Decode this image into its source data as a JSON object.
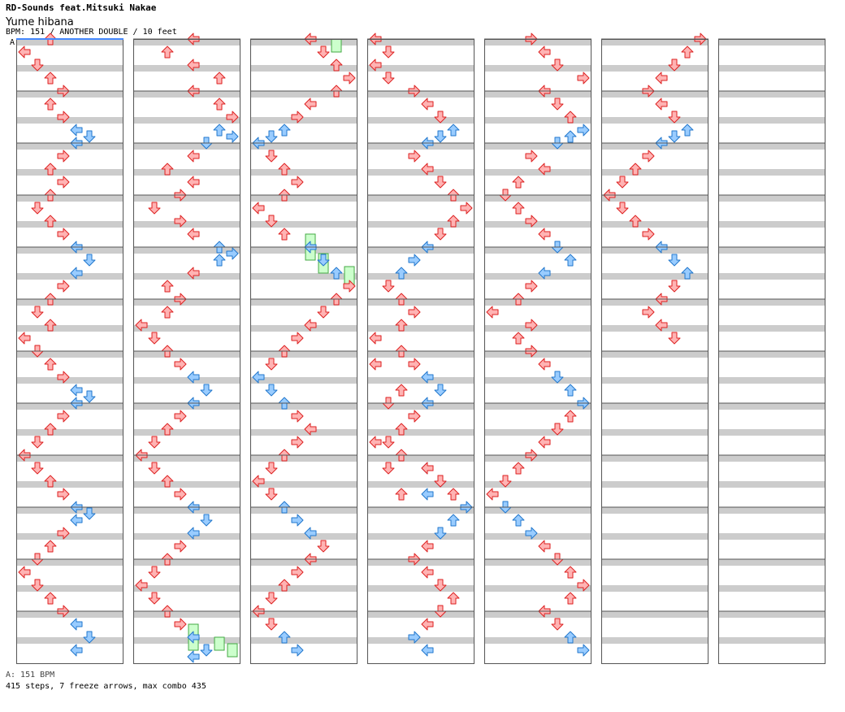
{
  "song": {
    "artist": "RD-Sounds feat.Mitsuki Nakae",
    "title": "Yume hibana",
    "meta_line": "BPM: 151 / ANOTHER DOUBLE / 10 feet",
    "section_marker": "A"
  },
  "footer": {
    "bpm_line": "A: 151 BPM",
    "stats_line": "415 steps, 7 freeze arrows, max combo 435"
  },
  "colors": {
    "red_fill": "#ffb3b3",
    "red_stroke": "#dd2222",
    "blue_fill": "#99ccff",
    "blue_stroke": "#2277cc",
    "freeze_fill": "#ccffcc",
    "freeze_stroke": "#44aa44",
    "band_gray": "#cccccc",
    "column_border": "#555555",
    "section_line": "#4488ff"
  },
  "chart_data": {
    "type": "step-chart",
    "style": "DOUBLE",
    "difficulty": "ANOTHER",
    "bpm": 151,
    "feet": 10,
    "steps": 415,
    "freeze_arrows": 7,
    "max_combo": 435,
    "columns": 7,
    "measures_per_column": 12,
    "lanes": [
      "P1-left",
      "P1-down",
      "P1-up",
      "P1-right",
      "P2-left",
      "P2-down",
      "P2-up",
      "P2-right"
    ],
    "notes_col1": [
      [
        0,
        42.25,
        4
      ],
      [
        1,
        43.0,
        4
      ],
      [
        2,
        42.75,
        4
      ],
      [
        3,
        43.25,
        4
      ],
      [
        0,
        43.75,
        4
      ],
      [
        1,
        44.25,
        4
      ],
      [
        2,
        44.75,
        4
      ],
      [
        4,
        44.25,
        8
      ],
      [
        5,
        44.5,
        8
      ],
      [
        4,
        44.75,
        8
      ]
    ],
    "notes_col2": [
      [
        2,
        0.0,
        4
      ],
      [
        0,
        0.25,
        4
      ],
      [
        1,
        0.5,
        4
      ],
      [
        2,
        0.75,
        4
      ],
      [
        3,
        1.0,
        4
      ],
      [
        2,
        1.25,
        4
      ],
      [
        3,
        1.5,
        4
      ],
      [
        4,
        1.75,
        8
      ],
      [
        5,
        1.875,
        8
      ],
      [
        4,
        2.0,
        8
      ],
      [
        3,
        2.25,
        4
      ],
      [
        2,
        2.5,
        4
      ],
      [
        3,
        2.75,
        4
      ],
      [
        2,
        3.0,
        4
      ],
      [
        1,
        3.25,
        4
      ],
      [
        2,
        3.5,
        4
      ],
      [
        3,
        3.75,
        4
      ],
      [
        4,
        4.0,
        8
      ],
      [
        5,
        4.25,
        8
      ],
      [
        4,
        4.5,
        8
      ],
      [
        3,
        4.75,
        4
      ],
      [
        2,
        5.0,
        4
      ],
      [
        1,
        5.25,
        4
      ],
      [
        2,
        5.5,
        4
      ],
      [
        0,
        5.75,
        4
      ],
      [
        1,
        6.0,
        4
      ],
      [
        2,
        6.25,
        4
      ],
      [
        3,
        6.5,
        4
      ],
      [
        4,
        6.75,
        8
      ],
      [
        5,
        6.875,
        8
      ],
      [
        4,
        7.0,
        8
      ],
      [
        3,
        7.25,
        4
      ],
      [
        2,
        7.5,
        4
      ],
      [
        1,
        7.75,
        4
      ],
      [
        0,
        8.0,
        4
      ],
      [
        1,
        8.25,
        4
      ],
      [
        2,
        8.5,
        4
      ],
      [
        3,
        8.75,
        4
      ],
      [
        4,
        9.0,
        8
      ],
      [
        5,
        9.125,
        8
      ],
      [
        4,
        9.25,
        8
      ],
      [
        3,
        9.5,
        4
      ],
      [
        2,
        9.75,
        4
      ],
      [
        1,
        10.0,
        4
      ],
      [
        0,
        10.25,
        4
      ],
      [
        1,
        10.5,
        4
      ],
      [
        2,
        10.75,
        4
      ],
      [
        3,
        11.0,
        4
      ],
      [
        4,
        11.25,
        8
      ],
      [
        5,
        11.5,
        8
      ],
      [
        4,
        11.75,
        8
      ]
    ],
    "notes_col3": [
      [
        4,
        12.0,
        4
      ],
      [
        2,
        12.25,
        4
      ],
      [
        4,
        12.5,
        4
      ],
      [
        6,
        12.75,
        4
      ],
      [
        4,
        13.0,
        4
      ],
      [
        6,
        13.25,
        4
      ],
      [
        7,
        13.5,
        4
      ],
      [
        6,
        13.75,
        8
      ],
      [
        7,
        13.875,
        8
      ],
      [
        5,
        14.0,
        8
      ],
      [
        4,
        14.25,
        4
      ],
      [
        2,
        14.5,
        4
      ],
      [
        4,
        14.75,
        4
      ],
      [
        3,
        15.0,
        4
      ],
      [
        1,
        15.25,
        4
      ],
      [
        3,
        15.5,
        4
      ],
      [
        4,
        15.75,
        4
      ],
      [
        6,
        16.0,
        8
      ],
      [
        7,
        16.125,
        8
      ],
      [
        6,
        16.25,
        8
      ],
      [
        4,
        16.5,
        4
      ],
      [
        2,
        16.75,
        4
      ],
      [
        3,
        17.0,
        4
      ],
      [
        2,
        17.25,
        4
      ],
      [
        0,
        17.5,
        4
      ],
      [
        1,
        17.75,
        4
      ],
      [
        2,
        18.0,
        4
      ],
      [
        3,
        18.25,
        4
      ],
      [
        4,
        18.5,
        8
      ],
      [
        5,
        18.75,
        8
      ],
      [
        4,
        19.0,
        8
      ],
      [
        3,
        19.25,
        4
      ],
      [
        2,
        19.5,
        4
      ],
      [
        1,
        19.75,
        4
      ],
      [
        0,
        20.0,
        4
      ],
      [
        1,
        20.25,
        4
      ],
      [
        2,
        20.5,
        4
      ],
      [
        3,
        20.75,
        4
      ],
      [
        4,
        21.0,
        8
      ],
      [
        5,
        21.25,
        8
      ],
      [
        4,
        21.5,
        8
      ],
      [
        3,
        21.75,
        4
      ],
      [
        2,
        22.0,
        4
      ],
      [
        1,
        22.25,
        4
      ],
      [
        0,
        22.5,
        4
      ],
      [
        1,
        22.75,
        4
      ],
      [
        2,
        23.0,
        4
      ],
      [
        3,
        23.25,
        4
      ],
      [
        4,
        23.5,
        8
      ],
      [
        5,
        23.75,
        8
      ],
      [
        4,
        23.875,
        8
      ]
    ],
    "notes_col4": [
      [
        4,
        24.0,
        4
      ],
      [
        5,
        24.25,
        4
      ],
      [
        6,
        24.5,
        4
      ],
      [
        7,
        24.75,
        4
      ],
      [
        6,
        25.0,
        4
      ],
      [
        4,
        25.25,
        4
      ],
      [
        3,
        25.5,
        4
      ],
      [
        2,
        25.75,
        8
      ],
      [
        1,
        25.875,
        8
      ],
      [
        0,
        26.0,
        8
      ],
      [
        1,
        26.25,
        4
      ],
      [
        2,
        26.5,
        4
      ],
      [
        3,
        26.75,
        4
      ],
      [
        2,
        27.0,
        4
      ],
      [
        0,
        27.25,
        4
      ],
      [
        1,
        27.5,
        4
      ],
      [
        2,
        27.75,
        4
      ],
      [
        4,
        28.0,
        8
      ],
      [
        5,
        28.25,
        8
      ],
      [
        6,
        28.5,
        8
      ],
      [
        7,
        28.75,
        4
      ],
      [
        6,
        29.0,
        4
      ],
      [
        5,
        29.25,
        4
      ],
      [
        4,
        29.5,
        4
      ],
      [
        3,
        29.75,
        4
      ],
      [
        2,
        30.0,
        4
      ],
      [
        1,
        30.25,
        4
      ],
      [
        0,
        30.5,
        8
      ],
      [
        1,
        30.75,
        8
      ],
      [
        2,
        31.0,
        8
      ],
      [
        3,
        31.25,
        4
      ],
      [
        4,
        31.5,
        4
      ],
      [
        3,
        31.75,
        4
      ],
      [
        2,
        32.0,
        4
      ],
      [
        1,
        32.25,
        4
      ],
      [
        0,
        32.5,
        4
      ],
      [
        1,
        32.75,
        4
      ],
      [
        2,
        33.0,
        8
      ],
      [
        3,
        33.25,
        8
      ],
      [
        4,
        33.5,
        8
      ],
      [
        5,
        33.75,
        4
      ],
      [
        4,
        34.0,
        4
      ],
      [
        3,
        34.25,
        4
      ],
      [
        2,
        34.5,
        4
      ],
      [
        1,
        34.75,
        4
      ],
      [
        0,
        35.0,
        4
      ],
      [
        1,
        35.25,
        4
      ],
      [
        2,
        35.5,
        8
      ],
      [
        3,
        35.75,
        8
      ]
    ],
    "notes_col5": [
      [
        0,
        36.0,
        4
      ],
      [
        1,
        36.25,
        4
      ],
      [
        0,
        36.5,
        4
      ],
      [
        1,
        36.75,
        4
      ],
      [
        3,
        37.0,
        4
      ],
      [
        4,
        37.25,
        4
      ],
      [
        5,
        37.5,
        4
      ],
      [
        6,
        37.75,
        8
      ],
      [
        5,
        37.875,
        8
      ],
      [
        4,
        38.0,
        8
      ],
      [
        3,
        38.25,
        4
      ],
      [
        4,
        38.5,
        4
      ],
      [
        5,
        38.75,
        4
      ],
      [
        6,
        39.0,
        4
      ],
      [
        7,
        39.25,
        4
      ],
      [
        6,
        39.5,
        4
      ],
      [
        5,
        39.75,
        4
      ],
      [
        4,
        40.0,
        8
      ],
      [
        3,
        40.25,
        8
      ],
      [
        2,
        40.5,
        8
      ],
      [
        1,
        40.75,
        4
      ],
      [
        2,
        41.0,
        4
      ],
      [
        3,
        41.25,
        4
      ],
      [
        2,
        41.5,
        4
      ],
      [
        0,
        41.75,
        4
      ],
      [
        2,
        42.0,
        4
      ],
      [
        3,
        42.25,
        4
      ],
      [
        4,
        42.5,
        8
      ],
      [
        5,
        42.75,
        8
      ],
      [
        4,
        43.0,
        8
      ],
      [
        3,
        43.25,
        4
      ],
      [
        2,
        43.5,
        4
      ],
      [
        1,
        43.75,
        4
      ],
      [
        2,
        44.0,
        4
      ],
      [
        4,
        44.25,
        4
      ],
      [
        5,
        44.5,
        4
      ],
      [
        6,
        44.75,
        4
      ],
      [
        7,
        45.0,
        8
      ],
      [
        6,
        45.25,
        8
      ],
      [
        5,
        45.5,
        8
      ],
      [
        4,
        45.75,
        4
      ],
      [
        3,
        46.0,
        4
      ],
      [
        4,
        46.25,
        4
      ],
      [
        5,
        46.5,
        4
      ],
      [
        6,
        46.75,
        4
      ],
      [
        5,
        47.0,
        4
      ],
      [
        4,
        47.25,
        4
      ],
      [
        3,
        47.5,
        8
      ],
      [
        4,
        47.75,
        8
      ]
    ],
    "notes_col6": [
      [
        3,
        48.0,
        4
      ],
      [
        4,
        48.25,
        4
      ],
      [
        5,
        48.5,
        4
      ],
      [
        7,
        48.75,
        4
      ],
      [
        4,
        49.0,
        4
      ],
      [
        5,
        49.25,
        4
      ],
      [
        6,
        49.5,
        4
      ],
      [
        7,
        49.75,
        8
      ],
      [
        6,
        49.875,
        8
      ],
      [
        5,
        50.0,
        8
      ],
      [
        3,
        50.25,
        4
      ],
      [
        4,
        50.5,
        4
      ],
      [
        2,
        50.75,
        4
      ],
      [
        1,
        51.0,
        4
      ],
      [
        2,
        51.25,
        4
      ],
      [
        3,
        51.5,
        4
      ],
      [
        4,
        51.75,
        4
      ],
      [
        5,
        52.0,
        8
      ],
      [
        6,
        52.25,
        8
      ],
      [
        4,
        52.5,
        8
      ],
      [
        3,
        52.75,
        4
      ],
      [
        2,
        53.0,
        4
      ],
      [
        0,
        53.25,
        4
      ],
      [
        3,
        53.5,
        4
      ],
      [
        2,
        53.75,
        4
      ],
      [
        3,
        54.0,
        4
      ],
      [
        4,
        54.25,
        4
      ],
      [
        5,
        54.5,
        8
      ],
      [
        6,
        54.75,
        8
      ],
      [
        7,
        55.0,
        8
      ],
      [
        6,
        55.25,
        4
      ],
      [
        5,
        55.5,
        4
      ],
      [
        4,
        55.75,
        4
      ],
      [
        3,
        56.0,
        4
      ],
      [
        2,
        56.25,
        4
      ],
      [
        1,
        56.5,
        4
      ],
      [
        0,
        56.75,
        4
      ],
      [
        1,
        57.0,
        8
      ],
      [
        2,
        57.25,
        8
      ],
      [
        3,
        57.5,
        8
      ],
      [
        4,
        57.75,
        4
      ],
      [
        5,
        58.0,
        4
      ],
      [
        6,
        58.25,
        4
      ],
      [
        7,
        58.5,
        4
      ],
      [
        6,
        58.75,
        4
      ],
      [
        4,
        59.0,
        4
      ],
      [
        5,
        59.25,
        4
      ],
      [
        6,
        59.5,
        8
      ],
      [
        7,
        59.75,
        8
      ]
    ],
    "notes_col7": [
      [
        7,
        60.0,
        4
      ],
      [
        6,
        60.25,
        4
      ],
      [
        5,
        60.5,
        4
      ],
      [
        4,
        60.75,
        4
      ],
      [
        3,
        61.0,
        4
      ],
      [
        4,
        61.25,
        4
      ],
      [
        5,
        61.5,
        4
      ],
      [
        6,
        61.75,
        8
      ],
      [
        5,
        61.875,
        8
      ],
      [
        4,
        62.0,
        8
      ],
      [
        3,
        62.25,
        4
      ],
      [
        2,
        62.5,
        4
      ],
      [
        1,
        62.75,
        4
      ],
      [
        0,
        63.0,
        4
      ],
      [
        1,
        63.25,
        4
      ],
      [
        2,
        63.5,
        4
      ],
      [
        3,
        63.75,
        4
      ],
      [
        4,
        64.0,
        8
      ],
      [
        5,
        64.25,
        8
      ],
      [
        6,
        64.5,
        8
      ],
      [
        5,
        64.75,
        4
      ],
      [
        4,
        65.0,
        4
      ],
      [
        3,
        65.25,
        4
      ],
      [
        4,
        65.5,
        4
      ],
      [
        5,
        65.75,
        4
      ]
    ],
    "freezes": [
      [
        6,
        24.0,
        24.25
      ],
      [
        4,
        27.75,
        28.25
      ],
      [
        5,
        28.125,
        28.5
      ],
      [
        7,
        28.375,
        28.75
      ],
      [
        4,
        23.25,
        23.75
      ],
      [
        6,
        23.5,
        23.75
      ],
      [
        7,
        23.625,
        23.875
      ]
    ]
  }
}
